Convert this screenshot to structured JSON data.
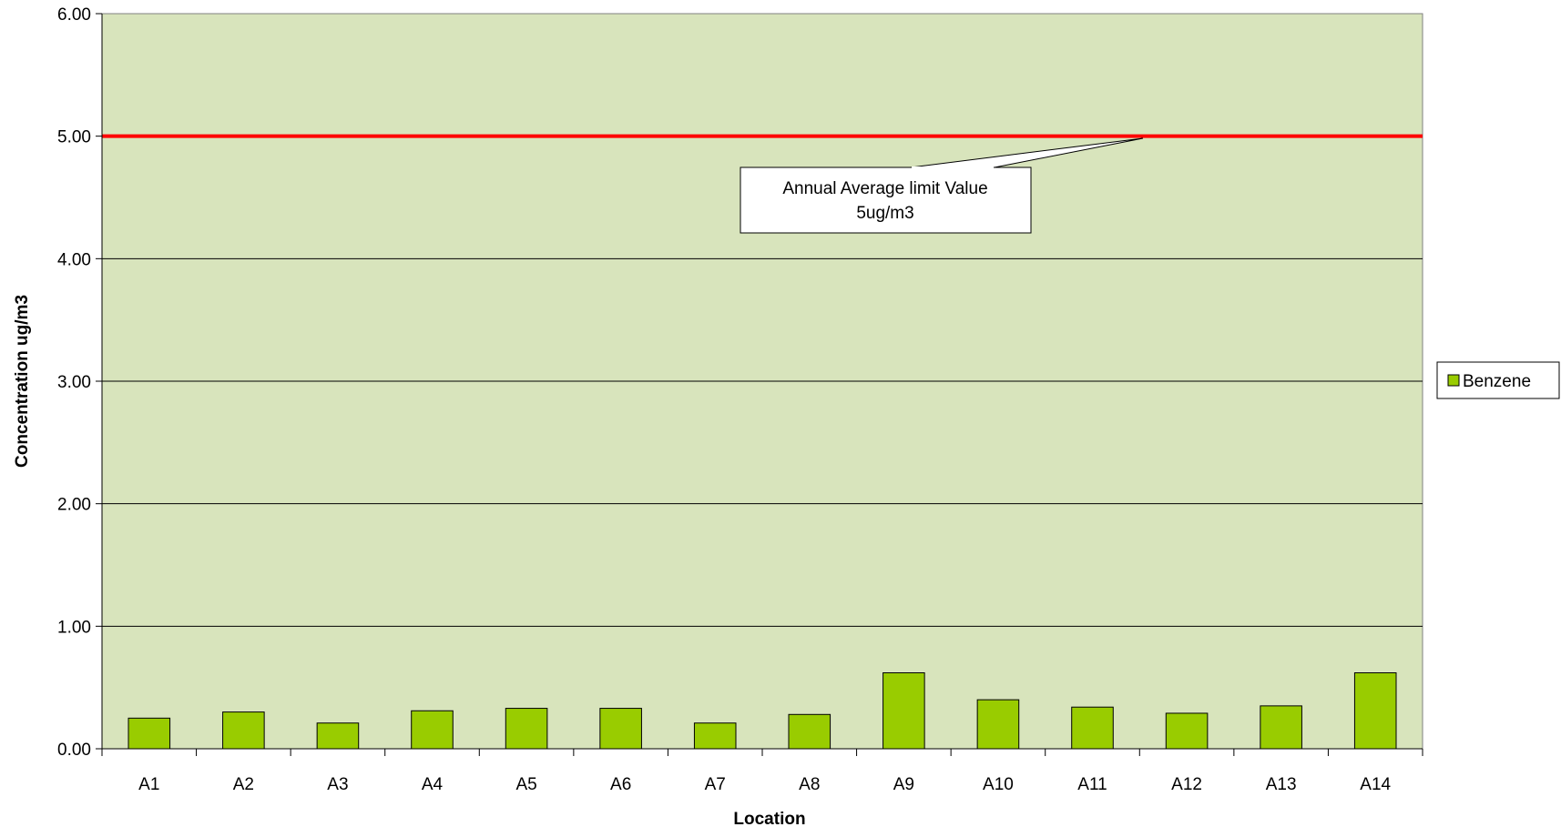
{
  "chart_data": {
    "type": "bar",
    "categories": [
      "A1",
      "A2",
      "A3",
      "A4",
      "A5",
      "A6",
      "A7",
      "A8",
      "A9",
      "A10",
      "A11",
      "A12",
      "A13",
      "A14"
    ],
    "series": [
      {
        "name": "Benzene",
        "values": [
          0.25,
          0.3,
          0.21,
          0.31,
          0.33,
          0.33,
          0.21,
          0.28,
          0.62,
          0.4,
          0.34,
          0.29,
          0.35,
          0.62
        ]
      }
    ],
    "title": "",
    "xlabel": "Location",
    "ylabel": "Concentration  ug/m3",
    "ylim": [
      0,
      6
    ],
    "y_ticks": [
      "0.00",
      "1.00",
      "2.00",
      "3.00",
      "4.00",
      "5.00",
      "6.00"
    ],
    "reference_line": {
      "value": 5.0,
      "color": "#ff0000"
    },
    "annotation": {
      "line1": "Annual Average limit Value",
      "line2": "5ug/m3"
    },
    "grid": true,
    "legend_position": "right",
    "colors": {
      "bar": "#99cc00",
      "plot_background": "#d8e4bc",
      "reference_line": "#ff0000"
    }
  }
}
